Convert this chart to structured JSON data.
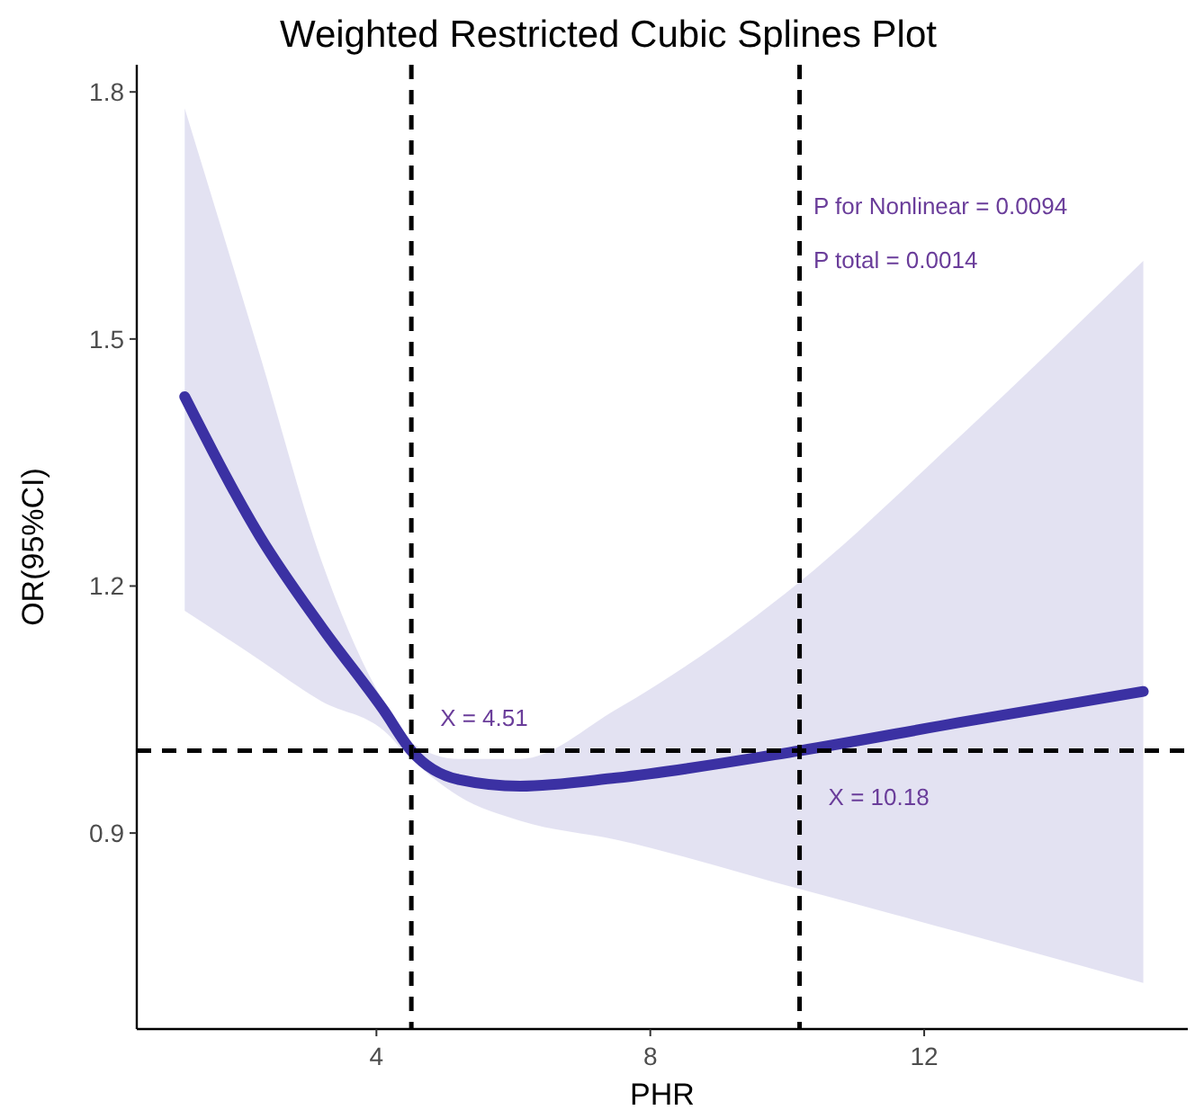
{
  "chart_data": {
    "type": "line",
    "title": "Weighted Restricted Cubic Splines Plot",
    "xlabel": "PHR",
    "ylabel": "OR(95%CI)",
    "x": [
      1.2,
      2.3,
      3.2,
      4.1,
      4.51,
      5.2,
      6.1,
      7.5,
      10.18,
      12.5,
      15.2
    ],
    "series": [
      {
        "color": "#3b31a3",
        "values": [
          1.43,
          1.26,
          1.15,
          1.05,
          1.0,
          0.965,
          0.957,
          0.967,
          1.0,
          1.034,
          1.072
        ],
        "lower": [
          1.17,
          1.11,
          1.06,
          1.025,
          0.99,
          0.945,
          0.915,
          0.892,
          0.832,
          0.78,
          0.718
        ],
        "upper": [
          1.78,
          1.48,
          1.23,
          1.06,
          1.01,
          0.99,
          0.99,
          1.05,
          1.205,
          1.38,
          1.595
        ]
      }
    ],
    "xlim": [
      0.5,
      15.85
    ],
    "xticks": [
      4,
      8,
      12
    ],
    "ylim": [
      0.662,
      1.833
    ],
    "yticks": [
      0.9,
      1.2,
      1.5,
      1.8
    ],
    "grid": false,
    "marker": "none",
    "line_style": "solid",
    "ref_lines": [
      {
        "axis": "x",
        "value": 4.51,
        "line_style": "dashed",
        "color": "#000000"
      },
      {
        "axis": "x",
        "value": 10.18,
        "line_style": "dashed",
        "color": "#000000"
      },
      {
        "axis": "y",
        "value": 1,
        "line_style": "dashed",
        "color": "#000000"
      }
    ],
    "annotations": [
      "P for Nonlinear = 0.0094",
      "P total = 0.0014",
      {
        "text": "X = 4.51",
        "x": 4.51,
        "y": 1
      },
      {
        "text": "X = 10.18",
        "x": 10.18,
        "y": 1
      }
    ]
  }
}
